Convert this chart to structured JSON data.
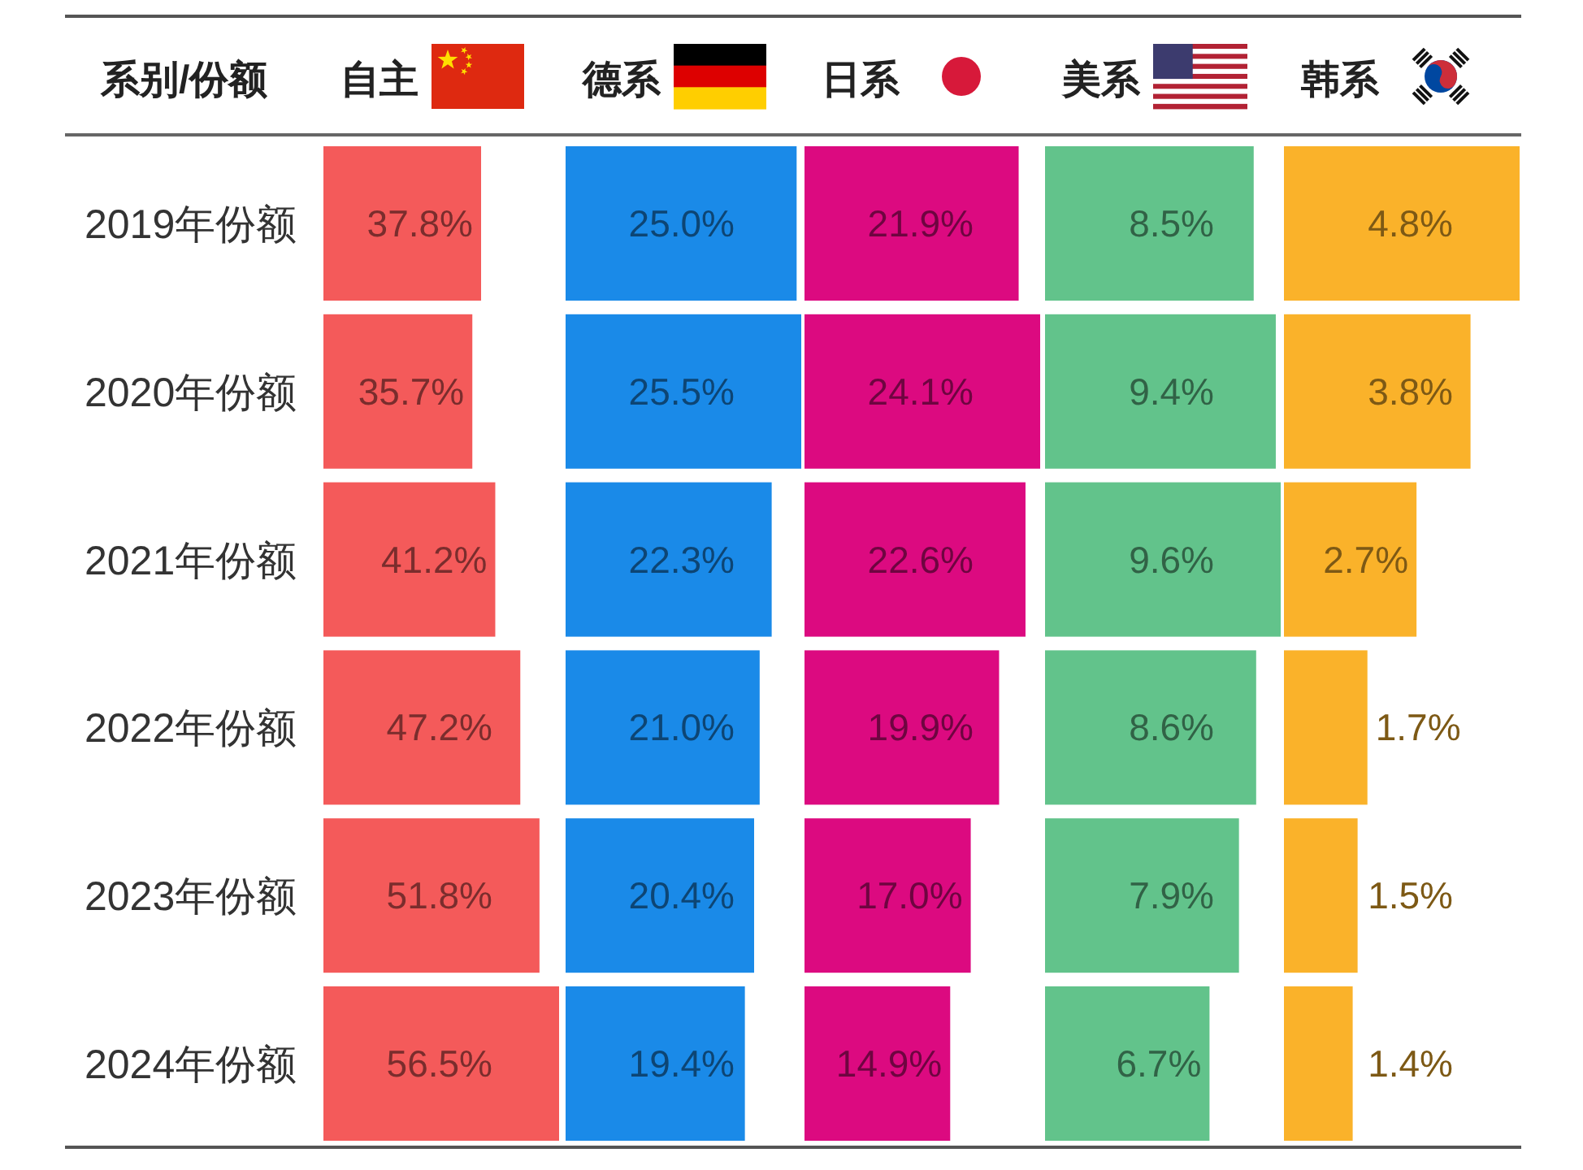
{
  "chart_data": [
    {
      "type": "bar",
      "orientation": "horizontal",
      "title": "自主",
      "annotations": [
        "系别/份额"
      ],
      "categories": [
        "2019年份额",
        "2020年份额",
        "2021年份额",
        "2022年份额",
        "2023年份额",
        "2024年份额"
      ],
      "values": [
        37.8,
        35.7,
        41.2,
        47.2,
        51.8,
        56.5
      ],
      "value_labels": [
        "37.8%",
        "35.7%",
        "41.2%",
        "47.2%",
        "51.8%",
        "56.5%"
      ],
      "color": "#f45a5a"
    },
    {
      "type": "bar",
      "orientation": "horizontal",
      "title": "德系",
      "categories": [
        null,
        null,
        null,
        null,
        null,
        null
      ],
      "values": [
        25.0,
        25.5,
        22.3,
        21.0,
        20.4,
        19.4
      ],
      "value_labels": [
        "25.0%",
        "25.5%",
        "22.3%",
        "21.0%",
        "20.4%",
        "19.4%"
      ],
      "color": "#1a8ae8"
    },
    {
      "type": "bar",
      "orientation": "horizontal",
      "title": "日系",
      "categories": [
        null,
        null,
        null,
        null,
        null,
        null
      ],
      "values": [
        21.9,
        24.1,
        22.6,
        19.9,
        17.0,
        14.9
      ],
      "value_labels": [
        "21.9%",
        "24.1%",
        "22.6%",
        "19.9%",
        "17.0%",
        "14.9%"
      ],
      "color": "#dc0a80"
    },
    {
      "type": "bar",
      "orientation": "horizontal",
      "title": "美系",
      "categories": [
        null,
        null,
        null,
        null,
        null,
        null
      ],
      "values": [
        8.5,
        9.4,
        9.6,
        8.6,
        7.9,
        6.7
      ],
      "value_labels": [
        "8.5%",
        "9.4%",
        "9.6%",
        "8.6%",
        "7.9%",
        "6.7%"
      ],
      "color": "#62c38b"
    },
    {
      "type": "bar",
      "orientation": "horizontal",
      "title": "韩系",
      "categories": [
        null,
        null,
        null,
        null,
        null,
        null
      ],
      "values": [
        4.8,
        3.8,
        2.7,
        1.7,
        1.5,
        1.4
      ],
      "value_labels": [
        "4.8%",
        "3.8%",
        "2.7%",
        "1.7%",
        "1.5%",
        "1.4%"
      ],
      "color": "#fab22a"
    }
  ]
}
